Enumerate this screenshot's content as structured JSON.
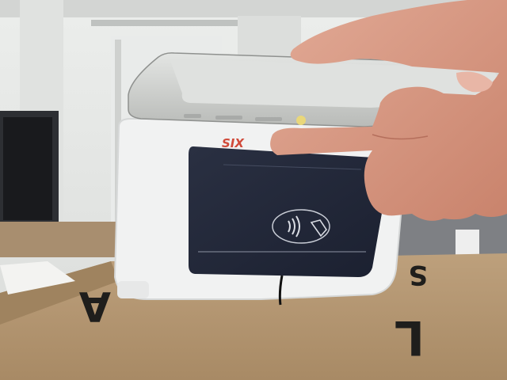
{
  "scene": {
    "terminal_brand": "SIX",
    "box_letters": [
      "A",
      "L",
      "S"
    ],
    "colors": {
      "wall": "#e6e8e6",
      "ceiling": "#d8dad8",
      "cardboard": "#b39570",
      "terminal_body": "#f3f4f4",
      "terminal_screen": "#22283a",
      "phone_frame": "#c9c6bd",
      "skin": "#d79a86",
      "brand_red": "#d04a3a"
    }
  }
}
